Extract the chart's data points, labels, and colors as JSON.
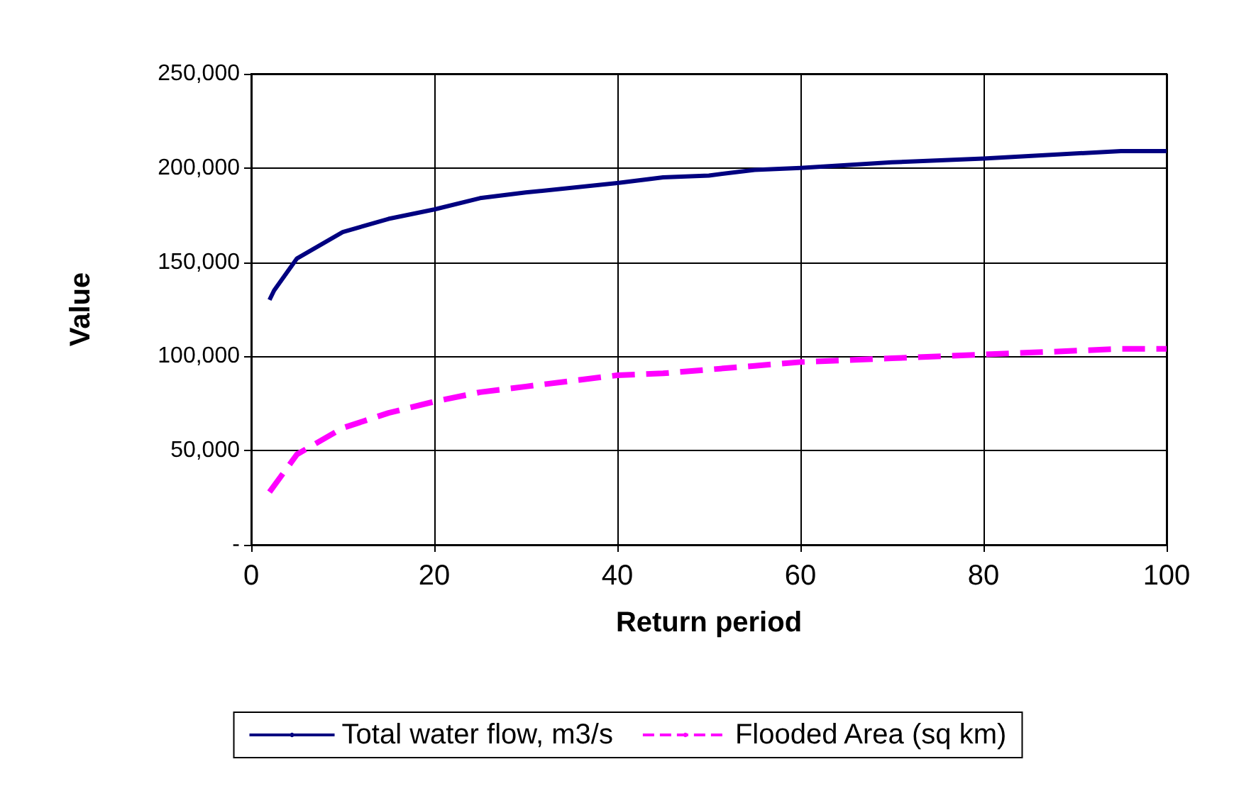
{
  "chart_data": {
    "type": "line",
    "xlabel": "Return period",
    "ylabel": "Value",
    "xlim": [
      0,
      100
    ],
    "xticks": [
      0,
      20,
      40,
      60,
      80,
      100
    ],
    "ylim": [
      0,
      250000
    ],
    "yticks": [
      {
        "value": 0,
        "label": "-"
      },
      {
        "value": 50000,
        "label": "50,000"
      },
      {
        "value": 100000,
        "label": "100,000"
      },
      {
        "value": 150000,
        "label": "150,000"
      },
      {
        "value": 200000,
        "label": "200,000"
      },
      {
        "value": 250000,
        "label": "250,000"
      }
    ],
    "grid": true,
    "legend": "bottom",
    "marker": "none",
    "series": [
      {
        "name": "Total water flow, m3/s",
        "color": "#000080",
        "line_style": "solid",
        "x": [
          2,
          2.5,
          5,
          10,
          15,
          20,
          25,
          30,
          40,
          45,
          50,
          55,
          60,
          70,
          80,
          95,
          100
        ],
        "values": [
          130000,
          135000,
          152000,
          166000,
          173000,
          178000,
          184000,
          187000,
          192000,
          195000,
          196000,
          199000,
          200000,
          203000,
          205000,
          209000,
          209000
        ]
      },
      {
        "name": "Flooded Area (sq km)",
        "color": "#ff00ff",
        "line_style": "dashed",
        "x": [
          2,
          5,
          10,
          15,
          20,
          25,
          30,
          40,
          45,
          50,
          55,
          60,
          70,
          80,
          95,
          100
        ],
        "values": [
          28000,
          48000,
          62000,
          70000,
          76000,
          81000,
          84000,
          90000,
          91000,
          93000,
          95000,
          97000,
          99000,
          101000,
          104000,
          104000
        ]
      }
    ]
  }
}
